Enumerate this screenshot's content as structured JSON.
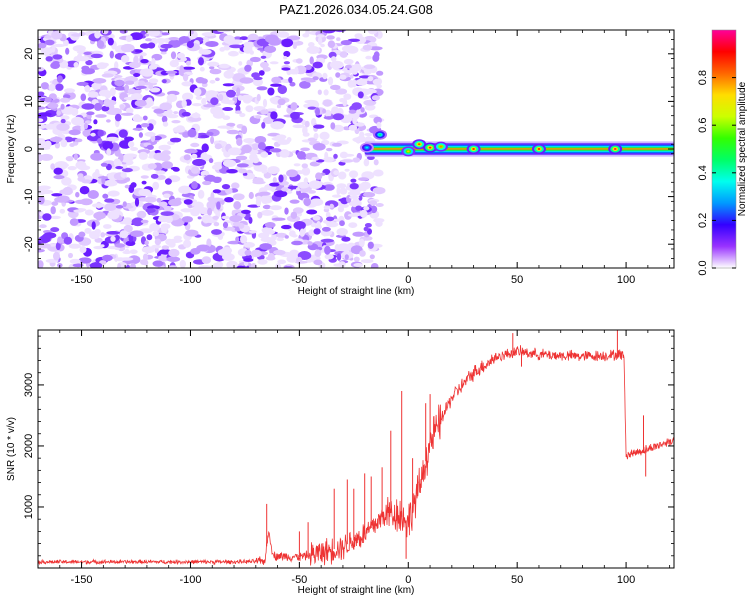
{
  "title": "PAZ1.2026.034.05.24.G08",
  "chart_data": [
    {
      "type": "heatmap",
      "name": "spectrogram",
      "xlabel": "Height of straight line (km)",
      "ylabel": "Frequency (Hz)",
      "xlim": [
        -170,
        122
      ],
      "ylim": [
        -25,
        25
      ],
      "xticks": [
        -150,
        -100,
        -50,
        0,
        50,
        100
      ],
      "yticks": [
        -20,
        -10,
        0,
        10,
        20
      ],
      "noise_region_x": [
        -170,
        -13
      ],
      "signal_band": {
        "x_start": -20,
        "x_end": 122,
        "freq_center": 0,
        "freq_halfwidth": 1.5
      },
      "hotspots": [
        {
          "x": -19,
          "y": 0.3,
          "value": 0.35
        },
        {
          "x": -13,
          "y": 3,
          "value": 0.45
        },
        {
          "x": 0,
          "y": -0.5,
          "value": 0.75
        },
        {
          "x": 5,
          "y": 1.0,
          "value": 0.85
        },
        {
          "x": 10,
          "y": 0.3,
          "value": 0.95
        },
        {
          "x": 15,
          "y": 0.5,
          "value": 0.8
        },
        {
          "x": 30,
          "y": 0,
          "value": 0.9
        },
        {
          "x": 60,
          "y": 0,
          "value": 0.9
        },
        {
          "x": 95,
          "y": 0,
          "value": 0.95
        }
      ],
      "colorbar": {
        "label": "Normalized spectral amplitude",
        "range": [
          0,
          1
        ],
        "ticks": [
          "0.0",
          "0.2",
          "0.4",
          "0.6",
          "0.8"
        ],
        "colors": [
          "#ffffff",
          "#9933ff",
          "#3300ff",
          "#0099ff",
          "#00ffee",
          "#00ff66",
          "#33ff00",
          "#ccff00",
          "#ffdd00",
          "#ff6600",
          "#ff0000",
          "#ff0099"
        ]
      }
    },
    {
      "type": "line",
      "name": "snr",
      "xlabel": "Height of straight line (km)",
      "ylabel": "SNR (10 * v/v)",
      "xlim": [
        -170,
        122
      ],
      "ylim": [
        0,
        3900
      ],
      "xticks": [
        -150,
        -100,
        -50,
        0,
        50,
        100
      ],
      "yticks": [
        1000,
        2000,
        3000
      ],
      "color": "#ee3333",
      "trend_km": [
        -170,
        -80,
        -66,
        -64,
        -62,
        -50,
        -40,
        -30,
        -20,
        -10,
        -5,
        0,
        5,
        10,
        20,
        30,
        40,
        50,
        60,
        70,
        80,
        90,
        99,
        100,
        110,
        122
      ],
      "trend_snr": [
        100,
        100,
        110,
        600,
        200,
        180,
        250,
        350,
        550,
        900,
        900,
        750,
        1300,
        2050,
        2800,
        3200,
        3450,
        3550,
        3500,
        3480,
        3470,
        3480,
        3500,
        1850,
        1950,
        2100
      ],
      "spikes": [
        {
          "x": -65,
          "y": 1050
        },
        {
          "x": -50,
          "y": 600
        },
        {
          "x": -46,
          "y": 750
        },
        {
          "x": -34,
          "y": 1300
        },
        {
          "x": -28,
          "y": 1450
        },
        {
          "x": -25,
          "y": 1300
        },
        {
          "x": -20,
          "y": 1550
        },
        {
          "x": -17,
          "y": 1500
        },
        {
          "x": -12,
          "y": 1650
        },
        {
          "x": -8,
          "y": 2250
        },
        {
          "x": -3,
          "y": 2900
        },
        {
          "x": -1,
          "y": 150
        },
        {
          "x": 2,
          "y": 1800
        },
        {
          "x": 8,
          "y": 2700
        },
        {
          "x": 10,
          "y": 2850
        },
        {
          "x": 48,
          "y": 3850
        },
        {
          "x": 52,
          "y": 3300
        },
        {
          "x": 96,
          "y": 3900
        },
        {
          "x": 108,
          "y": 2500
        },
        {
          "x": 109,
          "y": 1500
        }
      ]
    }
  ]
}
